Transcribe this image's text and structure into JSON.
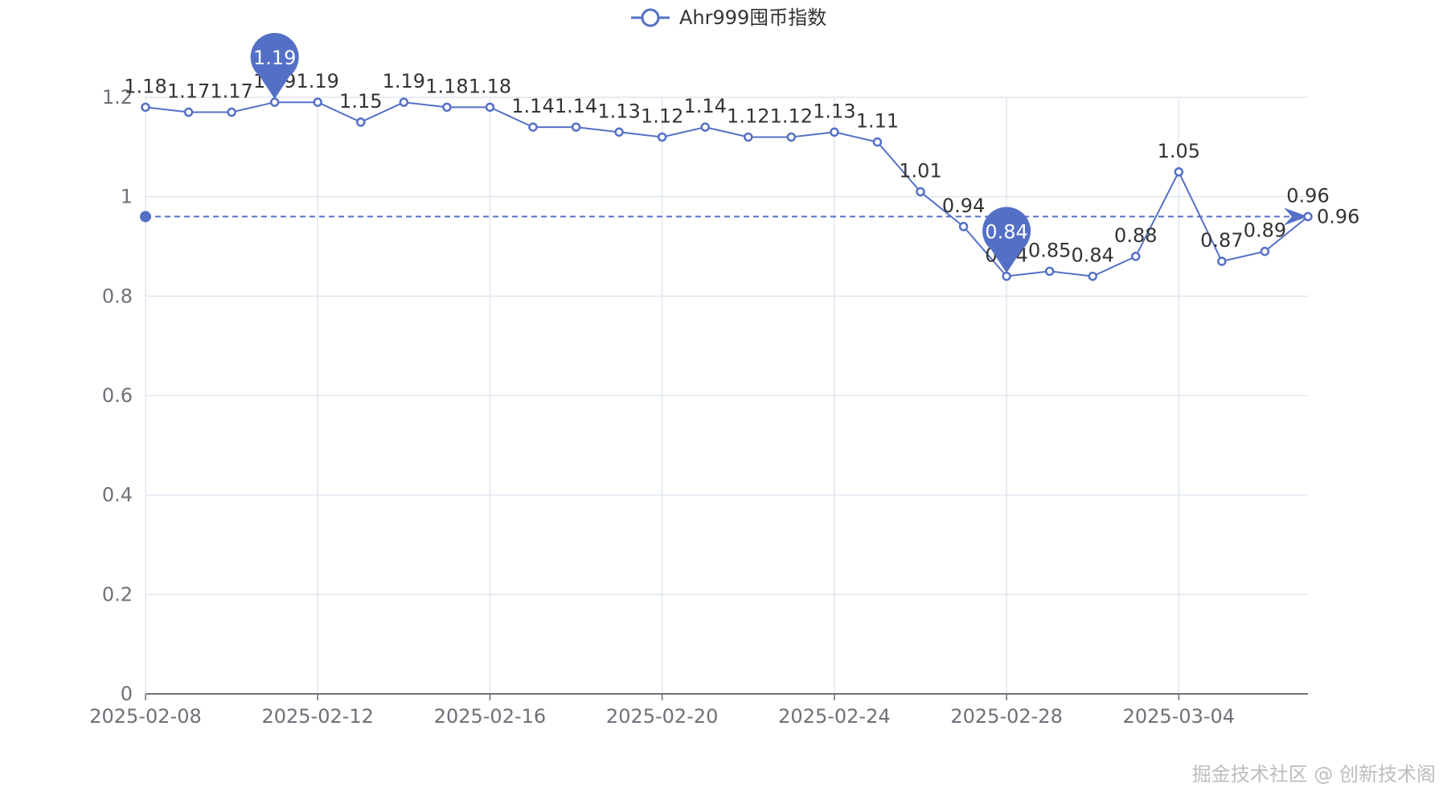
{
  "chart_data": {
    "type": "line",
    "legend": {
      "label": "Ahr999囤币指数",
      "position": "top-center"
    },
    "series": [
      {
        "name": "Ahr999囤币指数",
        "values": [
          1.18,
          1.17,
          1.17,
          1.19,
          1.19,
          1.15,
          1.19,
          1.18,
          1.18,
          1.14,
          1.14,
          1.13,
          1.12,
          1.14,
          1.12,
          1.12,
          1.13,
          1.11,
          1.01,
          0.94,
          0.84,
          0.85,
          0.84,
          0.88,
          1.05,
          0.87,
          0.89,
          0.96
        ]
      }
    ],
    "dates": [
      "2025-02-08",
      "2025-02-09",
      "2025-02-10",
      "2025-02-11",
      "2025-02-12",
      "2025-02-13",
      "2025-02-14",
      "2025-02-15",
      "2025-02-16",
      "2025-02-17",
      "2025-02-18",
      "2025-02-19",
      "2025-02-20",
      "2025-02-21",
      "2025-02-22",
      "2025-02-23",
      "2025-02-24",
      "2025-02-25",
      "2025-02-26",
      "2025-02-27",
      "2025-02-28",
      "2025-03-01",
      "2025-03-02",
      "2025-03-03",
      "2025-03-04",
      "2025-03-05",
      "2025-03-06",
      "2025-03-07"
    ],
    "x_tick_labels": [
      "2025-02-08",
      "2025-02-12",
      "2025-02-16",
      "2025-02-20",
      "2025-02-24",
      "2025-02-28",
      "2025-03-04"
    ],
    "y_tick_labels": [
      "0",
      "0.2",
      "0.4",
      "0.6",
      "0.8",
      "1",
      "1.2"
    ],
    "ylim": [
      0,
      1.2
    ],
    "mark_points": [
      {
        "label": "1.19",
        "date": "2025-02-11",
        "value": 1.19
      },
      {
        "label": "0.84",
        "date": "2025-02-28",
        "value": 0.84
      }
    ],
    "mark_line": {
      "value": 0.96,
      "label": "0.96"
    },
    "grid": true,
    "colors": {
      "series": "#5470c6",
      "grid": "#e0e6f1",
      "axis": "#6e7079",
      "label": "#333333"
    }
  },
  "watermark": "掘金技术社区 @ 创新技术阁"
}
